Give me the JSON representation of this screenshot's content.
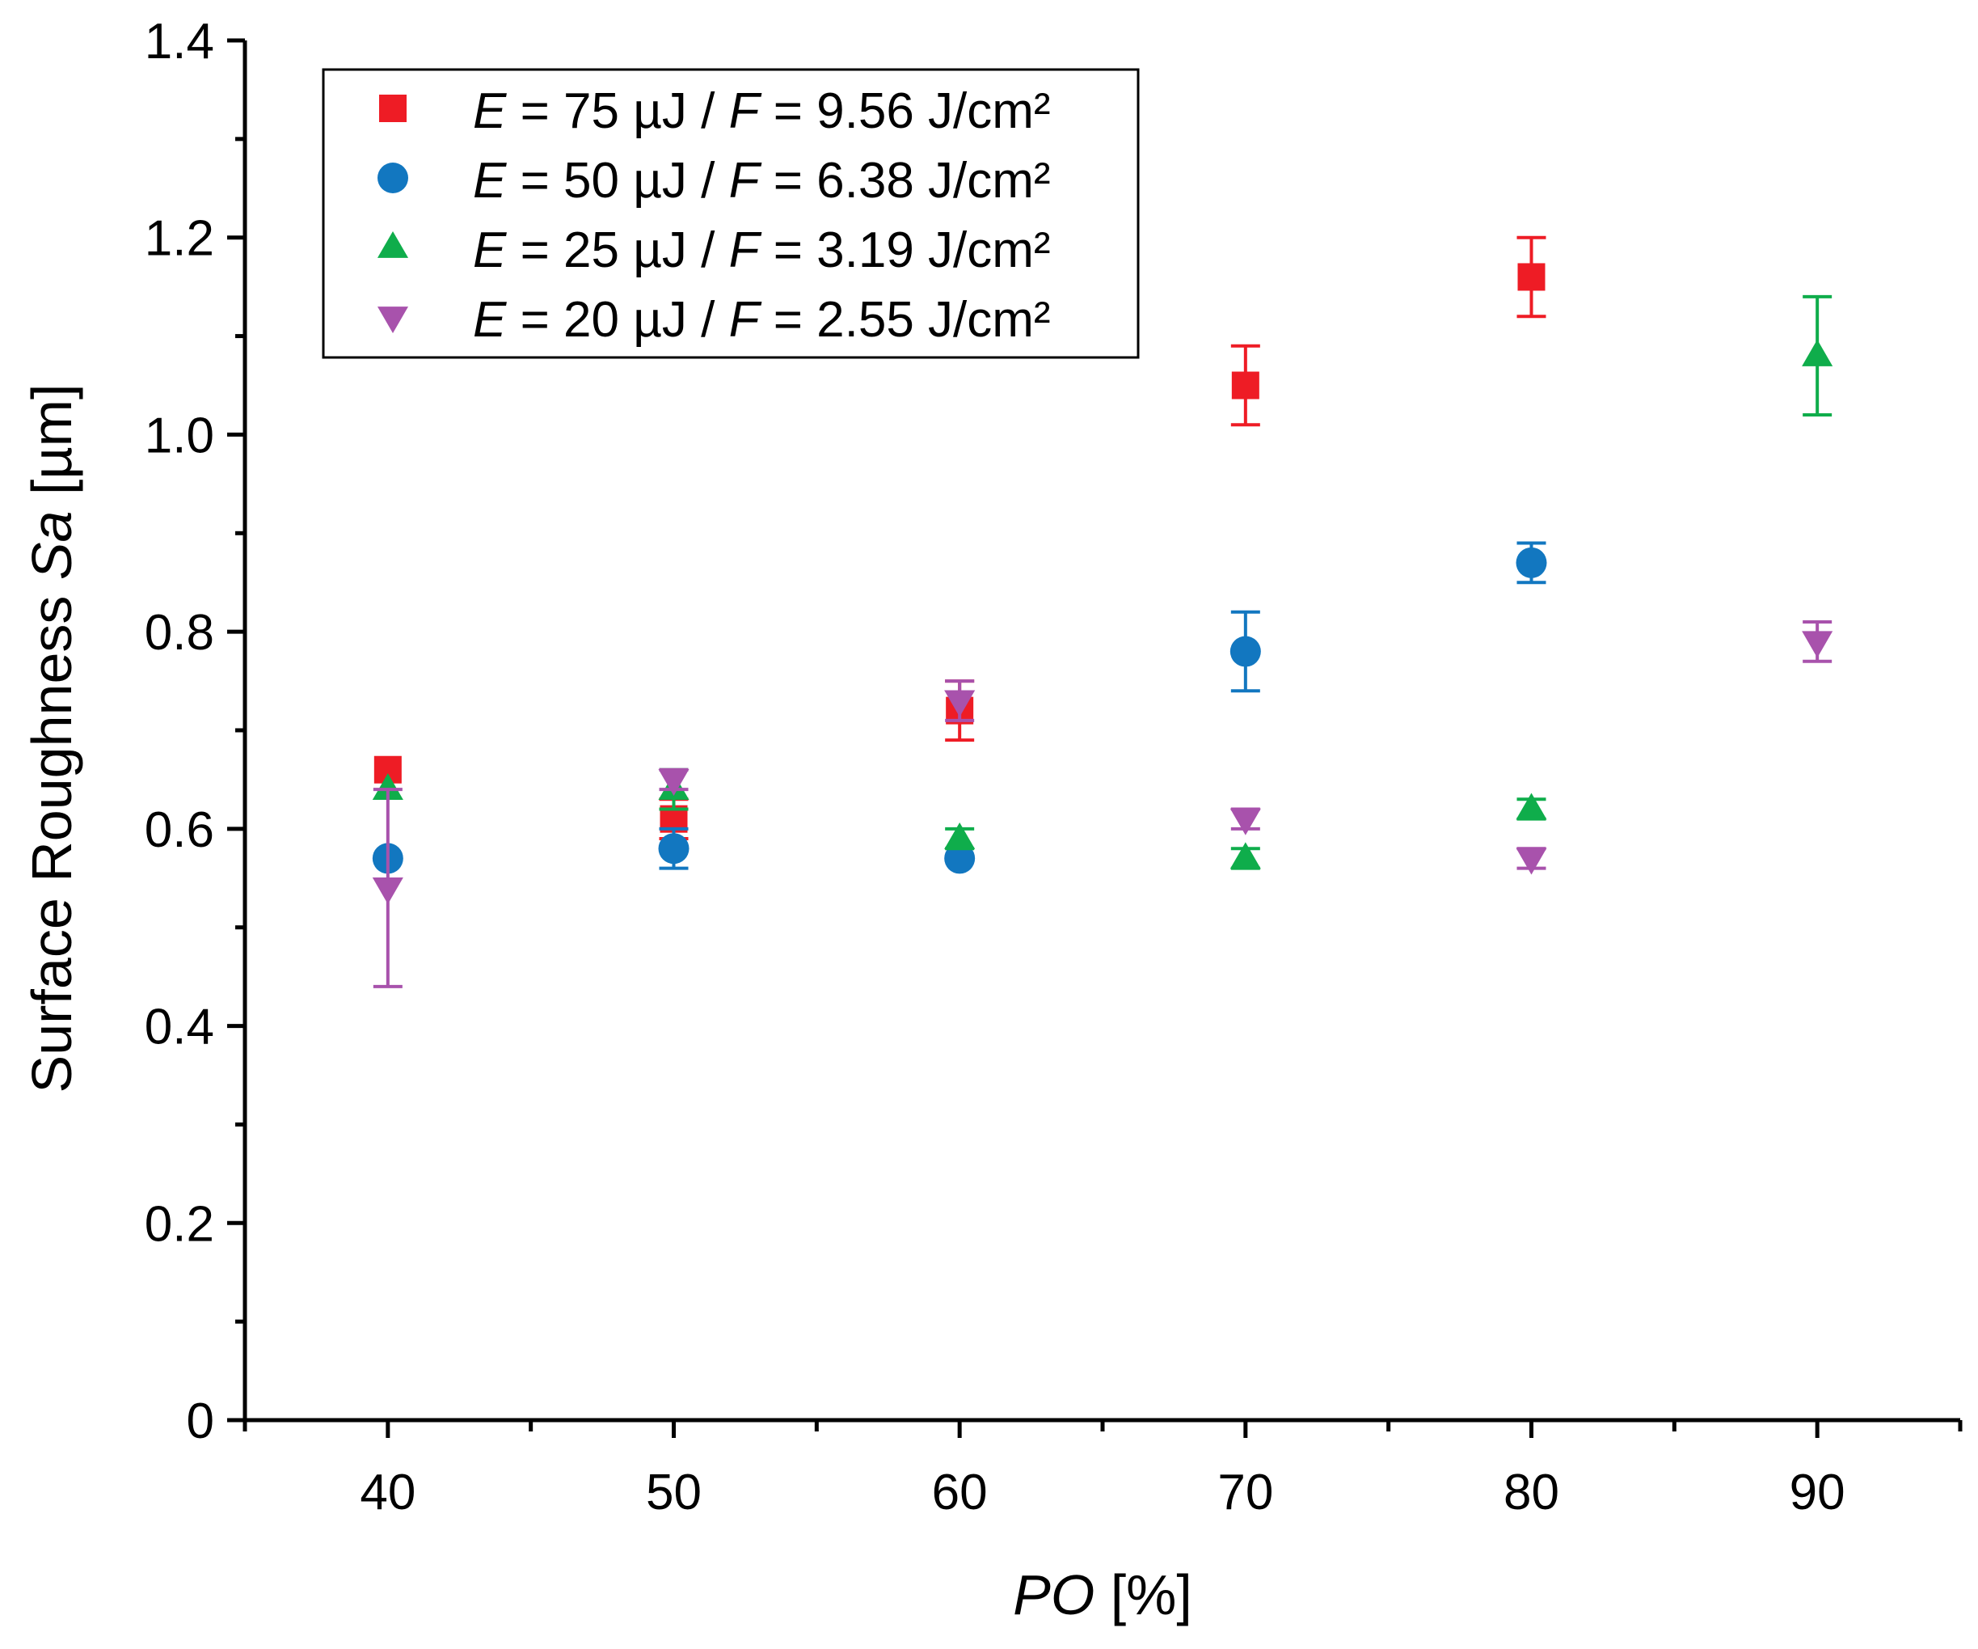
{
  "chart_data": {
    "type": "scatter",
    "title": "",
    "xlabel_italic": "PO",
    "xlabel_rest": " [%]",
    "ylabel_pre": "Surface Roughness ",
    "ylabel_italic": "Sa",
    "ylabel_post": " [µm]",
    "xlim": [
      35,
      95
    ],
    "ylim": [
      0,
      1.4
    ],
    "x_ticks": [
      40,
      50,
      60,
      70,
      80,
      90
    ],
    "x_tick_labels": [
      "40",
      "50",
      "60",
      "70",
      "80",
      "90"
    ],
    "x_minor_ticks": [
      35,
      45,
      55,
      65,
      75,
      85,
      95
    ],
    "y_ticks": [
      0,
      0.2,
      0.4,
      0.6,
      0.8,
      1.0,
      1.2,
      1.4
    ],
    "y_tick_labels": [
      "0",
      "0.2",
      "0.4",
      "0.6",
      "0.8",
      "1.0",
      "1.2",
      "1.4"
    ],
    "y_minor_ticks": [
      0.1,
      0.3,
      0.5,
      0.7,
      0.9,
      1.1,
      1.3
    ],
    "grid": false,
    "legend_position": "top-left",
    "series": [
      {
        "name": "E = 75 µJ / F = 9.56 J/cm²",
        "legend": {
          "a": "E",
          "b": " = 75 µJ / ",
          "c": "F",
          "d": " = 9.56 J/cm²"
        },
        "marker": "square",
        "color": "#ee1c25",
        "x": [
          40,
          50,
          60,
          70,
          80
        ],
        "y": [
          0.66,
          0.61,
          0.72,
          1.05,
          1.16
        ],
        "err": [
          0.0,
          0.02,
          0.03,
          0.04,
          0.04
        ]
      },
      {
        "name": "E = 50 µJ / F = 6.38 J/cm²",
        "legend": {
          "a": "E",
          "b": " = 50 µJ / ",
          "c": "F",
          "d": " = 6.38 J/cm²"
        },
        "marker": "circle",
        "color": "#1277c0",
        "x": [
          40,
          50,
          60,
          70,
          80
        ],
        "y": [
          0.57,
          0.58,
          0.57,
          0.78,
          0.87
        ],
        "err": [
          0.0,
          0.02,
          0.0,
          0.04,
          0.02
        ]
      },
      {
        "name": "E = 25 µJ / F = 3.19 J/cm²",
        "legend": {
          "a": "E",
          "b": " = 25 µJ / ",
          "c": "F",
          "d": " = 3.19 J/cm²"
        },
        "marker": "triangle-up",
        "color": "#0fad4b",
        "x": [
          40,
          50,
          60,
          70,
          80,
          90
        ],
        "y": [
          0.64,
          0.64,
          0.59,
          0.57,
          0.62,
          1.08
        ],
        "err": [
          0.0,
          0.02,
          0.01,
          0.01,
          0.01,
          0.06
        ]
      },
      {
        "name": "E = 20 µJ / F = 2.55 J/cm²",
        "legend": {
          "a": "E",
          "b": " = 20 µJ / ",
          "c": "F",
          "d": " = 2.55 J/cm²"
        },
        "marker": "triangle-down",
        "color": "#a852ac",
        "x": [
          40,
          50,
          60,
          70,
          80,
          90
        ],
        "y": [
          0.54,
          0.65,
          0.73,
          0.61,
          0.57,
          0.79
        ],
        "err": [
          0.1,
          0.01,
          0.02,
          0.01,
          0.01,
          0.02
        ]
      }
    ]
  }
}
